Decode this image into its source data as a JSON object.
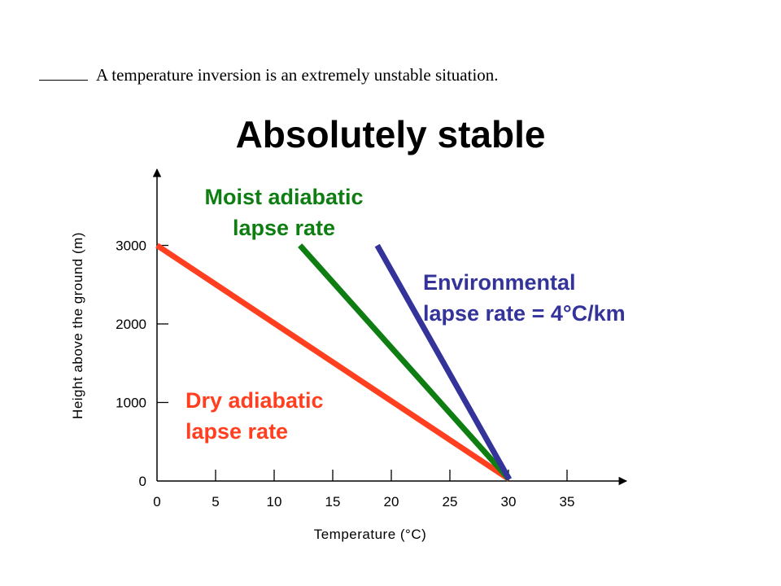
{
  "question": {
    "blank": "_____",
    "text": "A temperature inversion is an extremely unstable situation."
  },
  "chart_data": {
    "type": "line",
    "title": "Absolutely stable",
    "xlabel": "Temperature (°C)",
    "ylabel": "Height above the ground (m)",
    "xlim": [
      0,
      40
    ],
    "ylim": [
      0,
      4000
    ],
    "x_ticks": [
      0,
      5,
      10,
      15,
      20,
      25,
      30,
      35
    ],
    "y_ticks": [
      0,
      1000,
      2000,
      3000
    ],
    "series": [
      {
        "key": "dry",
        "label_lines": [
          "Dry adiabatic",
          "lapse rate"
        ],
        "color": "#ff3f1f",
        "points": [
          [
            30,
            0
          ],
          [
            0,
            3000
          ]
        ]
      },
      {
        "key": "moist",
        "label_lines": [
          "Moist adiabatic",
          "lapse rate"
        ],
        "color": "#0e7e12",
        "points": [
          [
            30,
            0
          ],
          [
            12.2,
            3000
          ]
        ]
      },
      {
        "key": "env",
        "label_lines": [
          "Environmental",
          "lapse rate = 4°C/km"
        ],
        "color": "#33339a",
        "points": [
          [
            30,
            0
          ],
          [
            18.8,
            3000
          ]
        ]
      }
    ]
  }
}
